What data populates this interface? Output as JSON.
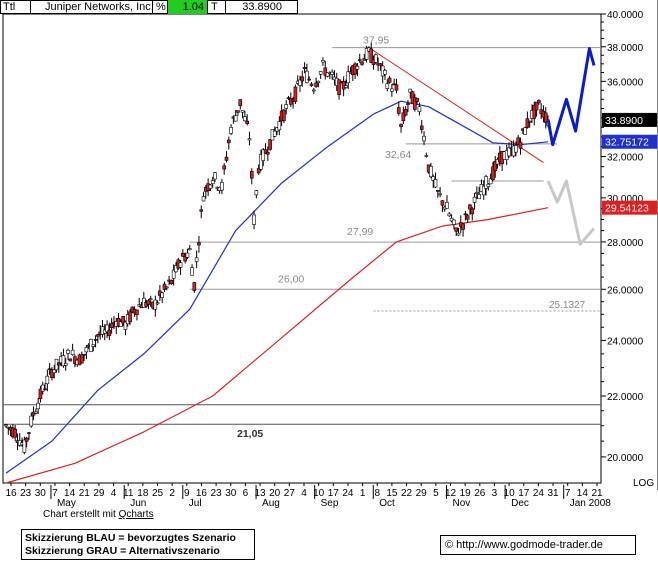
{
  "header": {
    "symbol": "Ttl",
    "name": "Juniper Networks, Inc.",
    "percent_label": "%",
    "percent_value": "1.04",
    "type_label": "T",
    "last_value": "33.8900"
  },
  "colors": {
    "up_candle": "#ffffff",
    "down_candle": "#d81e1e",
    "ma_blue": "#1f2fd6",
    "ma_red": "#e01f1f",
    "scenario_blue": "#0a1ad0",
    "scenario_gray": "#c8c8c8",
    "header_green": "#22cc22"
  },
  "chart_data": {
    "type": "candlestick",
    "title": "Juniper Networks, Inc.",
    "y_scale": "log",
    "ylim": [
      19.2,
      40.0
    ],
    "y_ticks": [
      "20.0000",
      "22.0000",
      "24.0000",
      "26.0000",
      "28.0000",
      "30.0000",
      "32.0000",
      "34.0000",
      "36.0000",
      "38.0000",
      "40.0000"
    ],
    "y_tick_values": [
      20,
      22,
      24,
      26,
      28,
      30,
      32,
      34,
      36,
      38,
      40
    ],
    "y_axis_note": "LOG",
    "x_day_labels": [
      "16",
      "23",
      "30",
      "7",
      "14",
      "21",
      "29",
      "4",
      "11",
      "18",
      "25",
      "2",
      "9",
      "16",
      "23",
      "30",
      "6",
      "13",
      "20",
      "27",
      "4",
      "10",
      "17",
      "24",
      "1",
      "8",
      "15",
      "22",
      "29",
      "5",
      "12",
      "19",
      "26",
      "3",
      "10",
      "17",
      "24",
      "31",
      "7",
      "14",
      "21"
    ],
    "x_month_labels": [
      "May",
      "Jun",
      "Jul",
      "Aug",
      "Sep",
      "Oct",
      "Nov",
      "Dec",
      "Jan 2008"
    ],
    "value_labels": {
      "current_price": "33.8900",
      "ma_blue_value": "32.75172",
      "ma_red_value": "29.54123",
      "dashed_level": "25.1327"
    },
    "horizontal_levels": [
      {
        "label": "37,95",
        "value": 37.95
      },
      {
        "label": "32,64",
        "value": 32.64
      },
      {
        "label": "27,99",
        "value": 27.99
      },
      {
        "label": "26,00",
        "value": 26.0
      },
      {
        "label": "21,05",
        "value": 21.05
      },
      {
        "label": "",
        "value": 21.7
      }
    ],
    "price_path": [
      {
        "x": 0,
        "y": 21.0
      },
      {
        "x": 2,
        "y": 20.8
      },
      {
        "x": 4,
        "y": 20.3
      },
      {
        "x": 6,
        "y": 21.4
      },
      {
        "x": 8,
        "y": 22.2
      },
      {
        "x": 10,
        "y": 22.9
      },
      {
        "x": 12,
        "y": 23.2
      },
      {
        "x": 14,
        "y": 23.5
      },
      {
        "x": 16,
        "y": 23.3
      },
      {
        "x": 18,
        "y": 23.7
      },
      {
        "x": 20,
        "y": 24.2
      },
      {
        "x": 22,
        "y": 24.3
      },
      {
        "x": 24,
        "y": 24.8
      },
      {
        "x": 26,
        "y": 24.6
      },
      {
        "x": 28,
        "y": 25.2
      },
      {
        "x": 30,
        "y": 25.5
      },
      {
        "x": 32,
        "y": 25.3
      },
      {
        "x": 34,
        "y": 25.8
      },
      {
        "x": 36,
        "y": 26.3
      },
      {
        "x": 38,
        "y": 27.2
      },
      {
        "x": 40,
        "y": 27.6
      },
      {
        "x": 41,
        "y": 26.2
      },
      {
        "x": 43,
        "y": 30.2
      },
      {
        "x": 45,
        "y": 31.0
      },
      {
        "x": 47,
        "y": 30.5
      },
      {
        "x": 49,
        "y": 33.5
      },
      {
        "x": 51,
        "y": 34.8
      },
      {
        "x": 53,
        "y": 33.0
      },
      {
        "x": 54,
        "y": 29.0
      },
      {
        "x": 55,
        "y": 31.5
      },
      {
        "x": 57,
        "y": 32.5
      },
      {
        "x": 59,
        "y": 33.5
      },
      {
        "x": 61,
        "y": 34.5
      },
      {
        "x": 63,
        "y": 35.3
      },
      {
        "x": 65,
        "y": 36.5
      },
      {
        "x": 67,
        "y": 35.8
      },
      {
        "x": 69,
        "y": 36.8
      },
      {
        "x": 71,
        "y": 36.2
      },
      {
        "x": 73,
        "y": 35.5
      },
      {
        "x": 75,
        "y": 36.5
      },
      {
        "x": 77,
        "y": 37.2
      },
      {
        "x": 79,
        "y": 37.6
      },
      {
        "x": 81,
        "y": 37.0
      },
      {
        "x": 83,
        "y": 36.0
      },
      {
        "x": 85,
        "y": 35.5
      },
      {
        "x": 86,
        "y": 33.5
      },
      {
        "x": 88,
        "y": 35.2
      },
      {
        "x": 90,
        "y": 34.5
      },
      {
        "x": 92,
        "y": 31.5
      },
      {
        "x": 94,
        "y": 30.2
      },
      {
        "x": 96,
        "y": 29.5
      },
      {
        "x": 98,
        "y": 28.4
      },
      {
        "x": 100,
        "y": 29.0
      },
      {
        "x": 102,
        "y": 29.8
      },
      {
        "x": 104,
        "y": 30.5
      },
      {
        "x": 106,
        "y": 31.2
      },
      {
        "x": 108,
        "y": 32.0
      },
      {
        "x": 110,
        "y": 32.2
      },
      {
        "x": 112,
        "y": 32.8
      },
      {
        "x": 114,
        "y": 34.0
      },
      {
        "x": 116,
        "y": 34.6
      },
      {
        "x": 118,
        "y": 33.9
      }
    ],
    "ma_blue": [
      {
        "x": 0,
        "y": 19.5
      },
      {
        "x": 10,
        "y": 20.5
      },
      {
        "x": 20,
        "y": 22.2
      },
      {
        "x": 30,
        "y": 23.5
      },
      {
        "x": 40,
        "y": 25.2
      },
      {
        "x": 50,
        "y": 28.5
      },
      {
        "x": 60,
        "y": 30.7
      },
      {
        "x": 70,
        "y": 32.5
      },
      {
        "x": 80,
        "y": 34.2
      },
      {
        "x": 86,
        "y": 34.9
      },
      {
        "x": 92,
        "y": 34.6
      },
      {
        "x": 100,
        "y": 33.5
      },
      {
        "x": 106,
        "y": 32.7
      },
      {
        "x": 112,
        "y": 32.6
      },
      {
        "x": 118,
        "y": 32.75
      }
    ],
    "ma_red": [
      {
        "x": 0,
        "y": 19.2
      },
      {
        "x": 15,
        "y": 19.8
      },
      {
        "x": 30,
        "y": 20.8
      },
      {
        "x": 45,
        "y": 22.0
      },
      {
        "x": 60,
        "y": 24.1
      },
      {
        "x": 75,
        "y": 26.4
      },
      {
        "x": 85,
        "y": 28.0
      },
      {
        "x": 95,
        "y": 28.7
      },
      {
        "x": 105,
        "y": 29.0
      },
      {
        "x": 118,
        "y": 29.54
      }
    ],
    "trend_line": [
      {
        "x": 79,
        "y": 37.95
      },
      {
        "x": 117,
        "y": 31.7
      }
    ],
    "scenario_blue": [
      {
        "x": 118,
        "y": 33.9
      },
      {
        "x": 119,
        "y": 32.6
      },
      {
        "x": 122,
        "y": 35.0
      },
      {
        "x": 124,
        "y": 33.3
      },
      {
        "x": 127,
        "y": 37.9
      },
      {
        "x": 128,
        "y": 36.9
      }
    ],
    "scenario_gray": [
      {
        "x": 118,
        "y": 30.8
      },
      {
        "x": 120,
        "y": 29.8
      },
      {
        "x": 122,
        "y": 30.8
      },
      {
        "x": 125,
        "y": 27.9
      },
      {
        "x": 128,
        "y": 28.6
      }
    ]
  },
  "footer": {
    "credit_prefix": "Chart erstellt mit ",
    "credit_link": "Qcharts",
    "scenario_blue_text": "Skizzierung BLAU = bevorzugtes Szenario",
    "scenario_gray_text": "Skizzierung GRAU = Alternativszenario",
    "copyright_symbol": "©",
    "website": "http://www.godmode-trader.de"
  }
}
